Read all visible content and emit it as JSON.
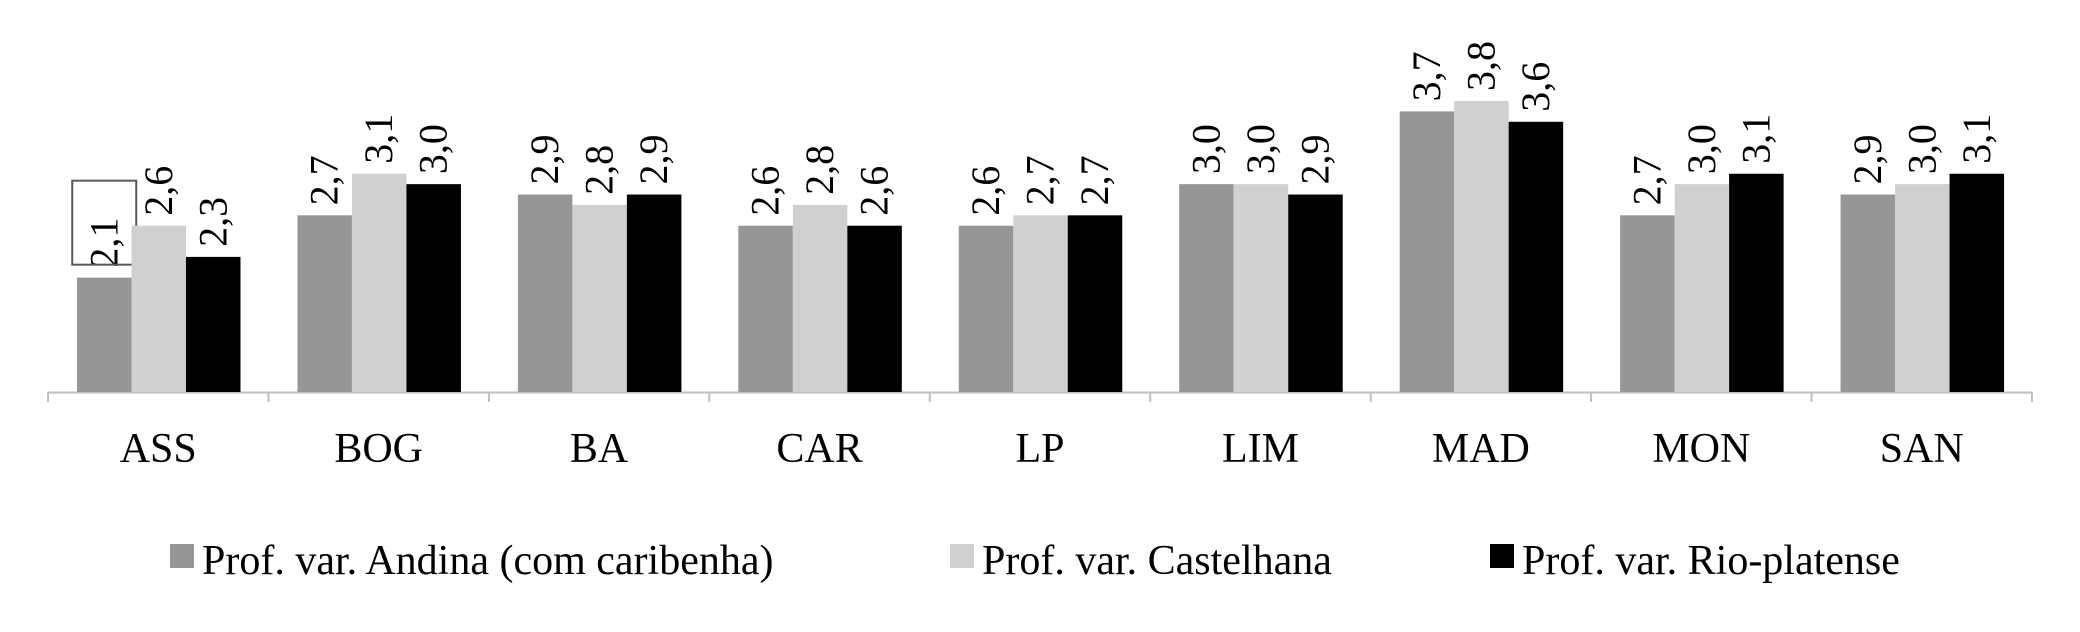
{
  "chart_data": {
    "type": "bar",
    "categories": [
      "ASS",
      "BOG",
      "BA",
      "CAR",
      "LP",
      "LIM",
      "MAD",
      "MON",
      "SAN"
    ],
    "series": [
      {
        "name": "Prof. var. Andina (com caribenha)",
        "color": "#969696",
        "values": [
          2.1,
          2.7,
          2.9,
          2.6,
          2.6,
          3.0,
          3.7,
          2.7,
          2.9
        ],
        "labels": [
          "2,1",
          "2,7",
          "2,9",
          "2,6",
          "2,6",
          "3,0",
          "3,7",
          "2,7",
          "2,9"
        ]
      },
      {
        "name": "Prof. var. Castelhana",
        "color": "#d0d0d0",
        "values": [
          2.6,
          3.1,
          2.8,
          2.8,
          2.7,
          3.0,
          3.8,
          3.0,
          3.0
        ],
        "labels": [
          "2,6",
          "3,1",
          "2,8",
          "2,8",
          "2,7",
          "3,0",
          "3,8",
          "3,0",
          "3,0"
        ]
      },
      {
        "name": "Prof. var. Rio-platense",
        "color": "#000000",
        "values": [
          2.3,
          3.0,
          2.9,
          2.6,
          2.7,
          2.9,
          3.6,
          3.1,
          3.1
        ],
        "labels": [
          "2,3",
          "3,0",
          "2,9",
          "2,6",
          "2,7",
          "2,9",
          "3,6",
          "3,1",
          "3,1"
        ]
      }
    ],
    "highlighted_label": {
      "series": 0,
      "category": "ASS"
    },
    "ylim": [
      1.0,
      3.8
    ],
    "grid": false,
    "y_axis_visible": false,
    "legend_position": "bottom",
    "axis_color": "#bfbfbf"
  }
}
